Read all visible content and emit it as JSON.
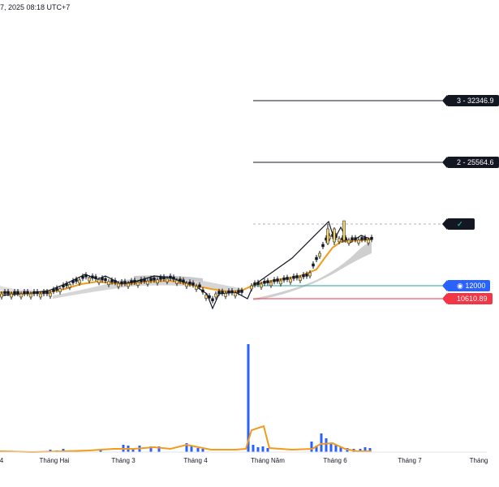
{
  "header": {
    "datetime": "7, 2025 08:18 UTC+7"
  },
  "levels": {
    "l3": "3 - 32346.9",
    "l2": "2 - 25564.6",
    "check": "✓",
    "take_profit": "12000",
    "stop_loss": "10610.89"
  },
  "x_axis": {
    "labels": [
      "4",
      "Tháng Hai",
      "Tháng 3",
      "Tháng 4",
      "Tháng Năm",
      "Tháng 6",
      "Tháng 7",
      "Tháng"
    ]
  },
  "colors": {
    "up_candle": "#f7d36b",
    "down_candle": "#131722",
    "ema": "#f29b1d",
    "volume": "#2962ff",
    "volume_ma": "#f29b1d",
    "target_line": "#131722",
    "stop_line": "#f23645",
    "entry_line": "#26a69a"
  },
  "icons": {
    "eye": "eye-icon"
  }
}
